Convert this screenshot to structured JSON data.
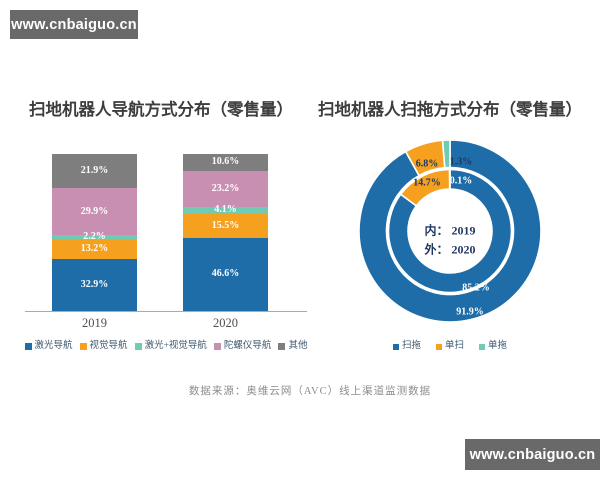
{
  "watermarks": {
    "top_left": "www.cnbaiguo.cn",
    "bottom_right": "www.cnbaiguo.cn"
  },
  "source_note": "数据来源：奥维云网（AVC）线上渠道监测数据",
  "colors": {
    "blue": "#1e6ca8",
    "orange": "#f5a01f",
    "teal": "#6fcbb2",
    "pink": "#c98fb3",
    "gray": "#7e7e7e",
    "watermark_bg": "#696969",
    "axis_line": "#aaaaaa",
    "label_light": "#ffffff",
    "label_dark": "#1f3864"
  },
  "chart_data": [
    {
      "type": "bar",
      "stacked": true,
      "title": "扫地机器人导航方式分布（零售量）",
      "categories": [
        "2019",
        "2020"
      ],
      "series": [
        {
          "name": "激光导航",
          "color": "#1e6ca8",
          "values": [
            32.9,
            46.6
          ]
        },
        {
          "name": "视觉导航",
          "color": "#f5a01f",
          "values": [
            13.2,
            15.5
          ]
        },
        {
          "name": "激光+视觉导航",
          "color": "#6fcbb2",
          "values": [
            2.2,
            4.1
          ]
        },
        {
          "name": "陀螺仪导航",
          "color": "#c98fb3",
          "values": [
            29.9,
            23.2
          ]
        },
        {
          "name": "其他",
          "color": "#7e7e7e",
          "values": [
            21.9,
            10.6
          ]
        }
      ],
      "unit": "%",
      "ylim": [
        0,
        100
      ],
      "grid": false,
      "legend_position": "bottom"
    },
    {
      "type": "pie",
      "subtype": "double-donut",
      "title": "扫地机器人扫拖方式分布（零售量）",
      "categories": [
        "扫拖",
        "单扫",
        "单拖"
      ],
      "category_colors": [
        "#1e6ca8",
        "#f5a01f",
        "#6fcbb2"
      ],
      "rings": [
        {
          "name": "2019",
          "position": "inner",
          "values": [
            85.2,
            14.7,
            0.1
          ]
        },
        {
          "name": "2020",
          "position": "outer",
          "values": [
            91.9,
            6.8,
            1.3
          ]
        }
      ],
      "center_label": {
        "line1": "内： 2019",
        "line2": "外： 2020"
      },
      "unit": "%",
      "legend_position": "bottom"
    }
  ]
}
